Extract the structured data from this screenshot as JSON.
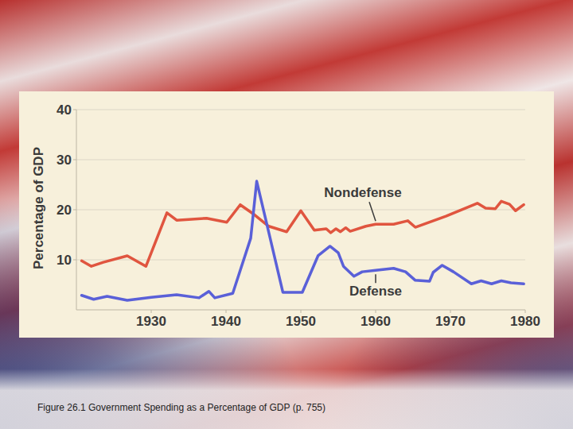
{
  "chart_data": {
    "type": "line",
    "caption": "Figure 26.1 Government Spending as a Percentage of GDP (p. 755)",
    "y_label": "Percentage of GDP",
    "xlim": [
      1920,
      1980
    ],
    "xticks": [
      1930,
      1940,
      1950,
      1960,
      1970,
      1980
    ],
    "ylim": [
      0,
      40
    ],
    "yticks": [
      10,
      20,
      30,
      40
    ],
    "grid": true,
    "series": [
      {
        "name": "Nondefense",
        "color": "#e0553f",
        "line_style": "solid",
        "x": [
          1920.7,
          1922,
          1923.6,
          1926.8,
          1929.3,
          1932.1,
          1933.4,
          1937.4,
          1940.1,
          1941.9,
          1943.8,
          1945.7,
          1948.1,
          1950,
          1951.8,
          1953.4,
          1954,
          1954.7,
          1955.3,
          1956,
          1956.6,
          1958.7,
          1960,
          1962.4,
          1964.3,
          1965.3,
          1969.4,
          1973.6,
          1974.7,
          1976,
          1976.8,
          1977.9,
          1978.7,
          1979.8
        ],
        "values": [
          9.8,
          8.7,
          9.5,
          10.8,
          8.7,
          19.4,
          17.9,
          18.3,
          17.5,
          21,
          19,
          16.7,
          15.6,
          19.8,
          15.9,
          16.2,
          15.4,
          16.2,
          15.6,
          16.4,
          15.7,
          16.7,
          17.1,
          17.1,
          17.8,
          16.5,
          18.7,
          21.3,
          20.3,
          20.2,
          21.7,
          21.1,
          19.8,
          21
        ]
      },
      {
        "name": "Defense",
        "color": "#5a60d8",
        "line_style": "solid",
        "x": [
          1920.7,
          1922.3,
          1924.1,
          1926.8,
          1930,
          1933.4,
          1936.4,
          1937.7,
          1938.5,
          1940.9,
          1943.3,
          1944.1,
          1945.9,
          1947.6,
          1950.2,
          1952.3,
          1953.9,
          1955,
          1955.7,
          1957.1,
          1958.2,
          1960,
          1962.4,
          1964,
          1965.3,
          1967.2,
          1967.7,
          1968.9,
          1970.4,
          1972.8,
          1974.1,
          1975.5,
          1976.8,
          1978.1,
          1979.8
        ],
        "values": [
          2.9,
          2.1,
          2.7,
          1.9,
          2.5,
          3,
          2.4,
          3.7,
          2.4,
          3.3,
          14.3,
          25.7,
          14.3,
          3.5,
          3.5,
          10.8,
          12.7,
          11.4,
          8.7,
          6.7,
          7.6,
          7.9,
          8.3,
          7.6,
          5.9,
          5.7,
          7.5,
          8.9,
          7.6,
          5.2,
          5.8,
          5.2,
          5.8,
          5.4,
          5.2
        ]
      }
    ]
  }
}
